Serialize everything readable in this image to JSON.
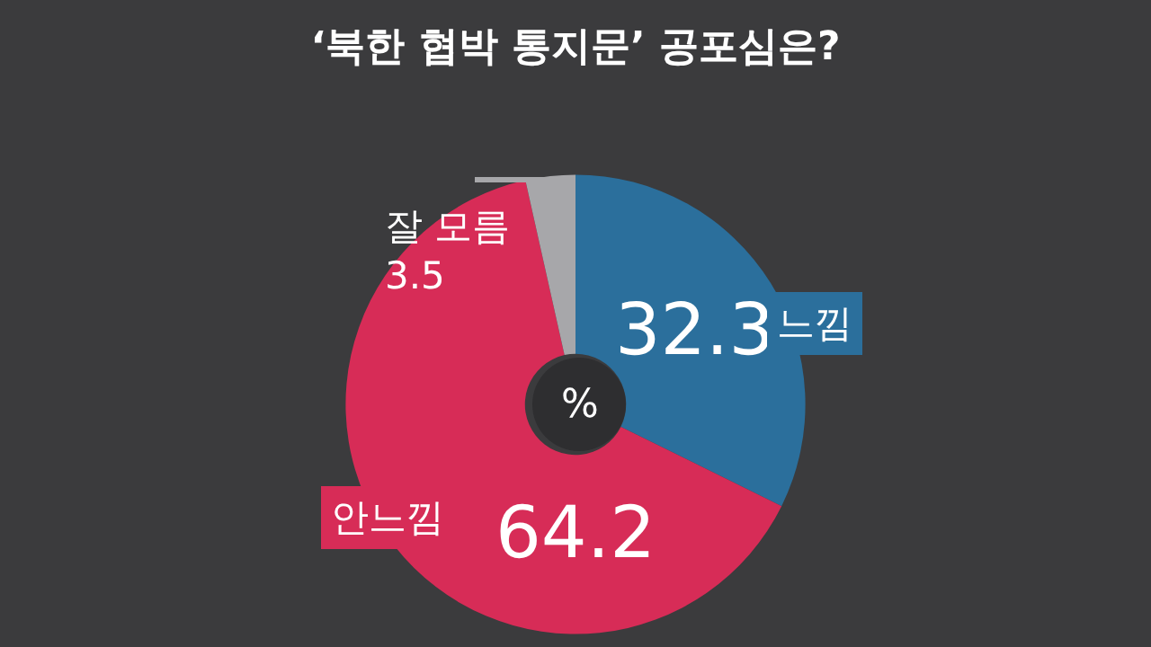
{
  "chart_data": {
    "type": "donut",
    "title": "‘북한 협박 통지문’ 공포심은?",
    "categories": [
      "느낌",
      "안느낌",
      "잘 모름"
    ],
    "values": [
      32.3,
      64.2,
      3.5
    ],
    "colors": [
      "#2b6f9c",
      "#d72c57",
      "#a7a7aa"
    ],
    "data_labels": true,
    "annotations": [
      "%"
    ],
    "legend": false
  }
}
